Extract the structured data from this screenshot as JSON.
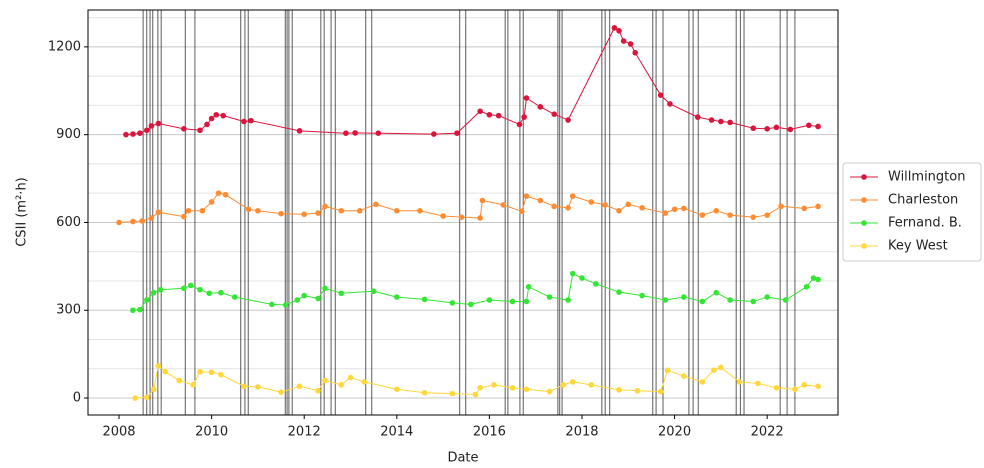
{
  "chart_data": {
    "type": "line",
    "xlabel": "Date",
    "ylabel": "CSII (m²·h)",
    "xlim": [
      2007.33,
      2023.53
    ],
    "ylim": [
      -58,
      1326
    ],
    "xticks": [
      2008,
      2010,
      2012,
      2014,
      2016,
      2018,
      2020,
      2022
    ],
    "yticks": [
      0,
      300,
      600,
      900,
      1200
    ],
    "y_minor_ticks": [
      100,
      200,
      400,
      500,
      700,
      800,
      1000,
      1100,
      1300
    ],
    "grid": true,
    "legend": "outside right",
    "events": [
      2008.52,
      2008.6,
      2008.67,
      2008.73,
      2008.84,
      2008.91,
      2009.43,
      2009.64,
      2010.63,
      2010.72,
      2010.79,
      2011.59,
      2011.63,
      2011.67,
      2011.74,
      2012.36,
      2012.43,
      2012.58,
      2012.67,
      2013.33,
      2013.46,
      2015.36,
      2015.49,
      2016.34,
      2016.4,
      2016.66,
      2016.73,
      2017.48,
      2017.52,
      2017.57,
      2018.43,
      2018.5,
      2018.6,
      2019.53,
      2019.6,
      2019.75,
      2020.31,
      2020.4,
      2020.51,
      2021.33,
      2021.42,
      2021.5,
      2022.28,
      2022.43,
      2022.6
    ],
    "series": [
      {
        "name": "Willmington",
        "color": "#dc143c",
        "x": [
          2008.15,
          2008.3,
          2008.45,
          2008.6,
          2008.7,
          2008.85,
          2009.4,
          2009.75,
          2009.9,
          2010,
          2010.1,
          2010.25,
          2010.7,
          2010.85,
          2011.9,
          2012.9,
          2013.1,
          2013.6,
          2014.8,
          2015.3,
          2015.8,
          2016,
          2016.2,
          2016.65,
          2016.75,
          2016.8,
          2017.1,
          2017.4,
          2017.7,
          2018.7,
          2018.8,
          2018.9,
          2019.05,
          2019.15,
          2019.7,
          2019.9,
          2020.5,
          2020.8,
          2021,
          2021.2,
          2021.7,
          2022,
          2022.2,
          2022.5,
          2022.9,
          2023.1
        ],
        "values": [
          900,
          902,
          905,
          915,
          930,
          938,
          920,
          915,
          935,
          955,
          968,
          965,
          945,
          948,
          913,
          905,
          906,
          905,
          902,
          905,
          980,
          968,
          965,
          935,
          960,
          1025,
          995,
          970,
          950,
          1265,
          1255,
          1220,
          1210,
          1180,
          1035,
          1005,
          960,
          950,
          945,
          942,
          922,
          920,
          925,
          918,
          932,
          928
        ]
      },
      {
        "name": "Charleston",
        "color": "#ff8c32",
        "x": [
          2008,
          2008.3,
          2008.5,
          2008.7,
          2008.85,
          2009.4,
          2009.5,
          2009.8,
          2010,
          2010.15,
          2010.3,
          2010.8,
          2011,
          2011.5,
          2012,
          2012.3,
          2012.45,
          2012.8,
          2013.2,
          2013.55,
          2014,
          2014.5,
          2015,
          2015.4,
          2015.8,
          2015.85,
          2016.3,
          2016.7,
          2016.8,
          2017.1,
          2017.4,
          2017.7,
          2017.8,
          2018.2,
          2018.5,
          2018.8,
          2019,
          2019.3,
          2019.8,
          2020,
          2020.2,
          2020.6,
          2020.9,
          2021.2,
          2021.7,
          2022,
          2022.3,
          2022.8,
          2023.1
        ],
        "values": [
          600,
          603,
          605,
          615,
          635,
          620,
          640,
          640,
          670,
          700,
          695,
          645,
          640,
          630,
          628,
          632,
          655,
          640,
          640,
          662,
          640,
          640,
          622,
          618,
          615,
          675,
          660,
          638,
          690,
          675,
          655,
          650,
          690,
          670,
          660,
          640,
          662,
          650,
          632,
          645,
          648,
          625,
          640,
          625,
          618,
          625,
          655,
          648,
          655
        ]
      },
      {
        "name": "Fernand. B.",
        "color": "#33e633",
        "x": [
          2008.3,
          2008.45,
          2008.6,
          2008.75,
          2008.9,
          2009.4,
          2009.55,
          2009.75,
          2009.95,
          2010.2,
          2010.5,
          2011.3,
          2011.6,
          2011.85,
          2012,
          2012.3,
          2012.45,
          2012.8,
          2013.5,
          2014,
          2014.6,
          2015.2,
          2015.6,
          2016,
          2016.5,
          2016.8,
          2016.85,
          2017.3,
          2017.7,
          2017.8,
          2018,
          2018.3,
          2018.8,
          2019.3,
          2019.8,
          2020.2,
          2020.6,
          2020.9,
          2021.2,
          2021.7,
          2022,
          2022.4,
          2022.85,
          2023,
          2023.1
        ],
        "values": [
          300,
          302,
          335,
          360,
          370,
          375,
          385,
          370,
          358,
          360,
          345,
          320,
          318,
          335,
          350,
          340,
          375,
          358,
          365,
          345,
          337,
          325,
          320,
          335,
          330,
          330,
          380,
          345,
          335,
          425,
          410,
          390,
          362,
          350,
          335,
          345,
          330,
          360,
          335,
          330,
          345,
          335,
          380,
          410,
          405
        ]
      },
      {
        "name": "Key West",
        "color": "#ffd73a",
        "x": [
          2008.35,
          2008.6,
          2008.75,
          2008.85,
          2009,
          2009.3,
          2009.6,
          2009.75,
          2010,
          2010.2,
          2010.7,
          2011,
          2011.5,
          2011.9,
          2012.3,
          2012.45,
          2012.8,
          2013,
          2013.3,
          2014,
          2014.6,
          2015.2,
          2015.7,
          2015.8,
          2016.1,
          2016.5,
          2016.8,
          2017.3,
          2017.6,
          2017.8,
          2018.2,
          2018.8,
          2019.2,
          2019.7,
          2019.85,
          2020.2,
          2020.6,
          2020.85,
          2021,
          2021.4,
          2021.8,
          2022.2,
          2022.6,
          2022.8,
          2023.1
        ],
        "values": [
          0,
          2,
          30,
          110,
          90,
          60,
          45,
          90,
          88,
          80,
          40,
          38,
          20,
          40,
          25,
          60,
          45,
          70,
          55,
          30,
          18,
          15,
          12,
          35,
          45,
          35,
          30,
          22,
          45,
          55,
          45,
          28,
          25,
          22,
          95,
          75,
          55,
          95,
          105,
          55,
          50,
          35,
          30,
          45,
          40
        ]
      }
    ]
  }
}
